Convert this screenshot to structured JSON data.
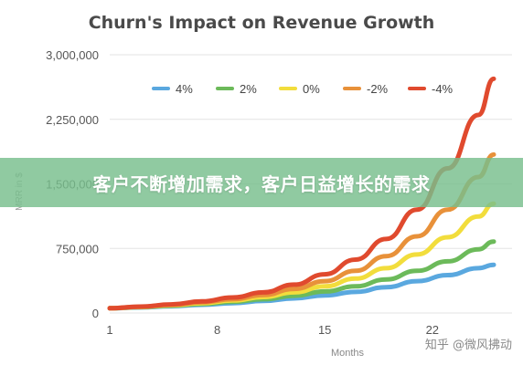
{
  "chart_data": {
    "type": "line",
    "title": "Churn's Impact on Revenue Growth",
    "xlabel": "Months",
    "ylabel": "MRR in $",
    "x_ticks": [
      1,
      8,
      15,
      22
    ],
    "y_ticks": [
      0,
      750000,
      1500000,
      2250000,
      3000000
    ],
    "y_tick_labels": [
      "0",
      "750,000",
      "1,500,000",
      "2,250,000",
      "3,000,000"
    ],
    "xlim": [
      1,
      26
    ],
    "ylim": [
      0,
      3000000
    ],
    "grid": "horizontal",
    "legend_position": "top",
    "x": [
      1,
      3,
      5,
      7,
      9,
      11,
      13,
      15,
      17,
      19,
      21,
      23,
      25,
      26
    ],
    "series": [
      {
        "name": "4%",
        "color": "#5aa8df",
        "values": [
          55000,
          65000,
          78000,
          95000,
          115000,
          140000,
          170000,
          205000,
          245000,
          300000,
          370000,
          440000,
          520000,
          560000
        ]
      },
      {
        "name": "2%",
        "color": "#6cba5a",
        "values": [
          55000,
          68000,
          85000,
          105000,
          130000,
          160000,
          200000,
          250000,
          310000,
          390000,
          490000,
          600000,
          740000,
          830000
        ]
      },
      {
        "name": "0%",
        "color": "#f2dd3c",
        "values": [
          55000,
          70000,
          90000,
          115000,
          145000,
          185000,
          240000,
          310000,
          400000,
          520000,
          680000,
          880000,
          1120000,
          1270000
        ]
      },
      {
        "name": "-2%",
        "color": "#e8913a",
        "values": [
          55000,
          72000,
          95000,
          125000,
          160000,
          210000,
          280000,
          370000,
          490000,
          660000,
          890000,
          1200000,
          1580000,
          1840000
        ]
      },
      {
        "name": "-4%",
        "color": "#e04a2e",
        "values": [
          55000,
          74000,
          100000,
          135000,
          180000,
          240000,
          330000,
          450000,
          620000,
          860000,
          1200000,
          1680000,
          2300000,
          2720000
        ]
      }
    ]
  },
  "overlay": {
    "banner_text": "客户不断增加需求，客户日益增长的需求"
  },
  "watermark": {
    "text": "知乎 @微风拂动"
  }
}
